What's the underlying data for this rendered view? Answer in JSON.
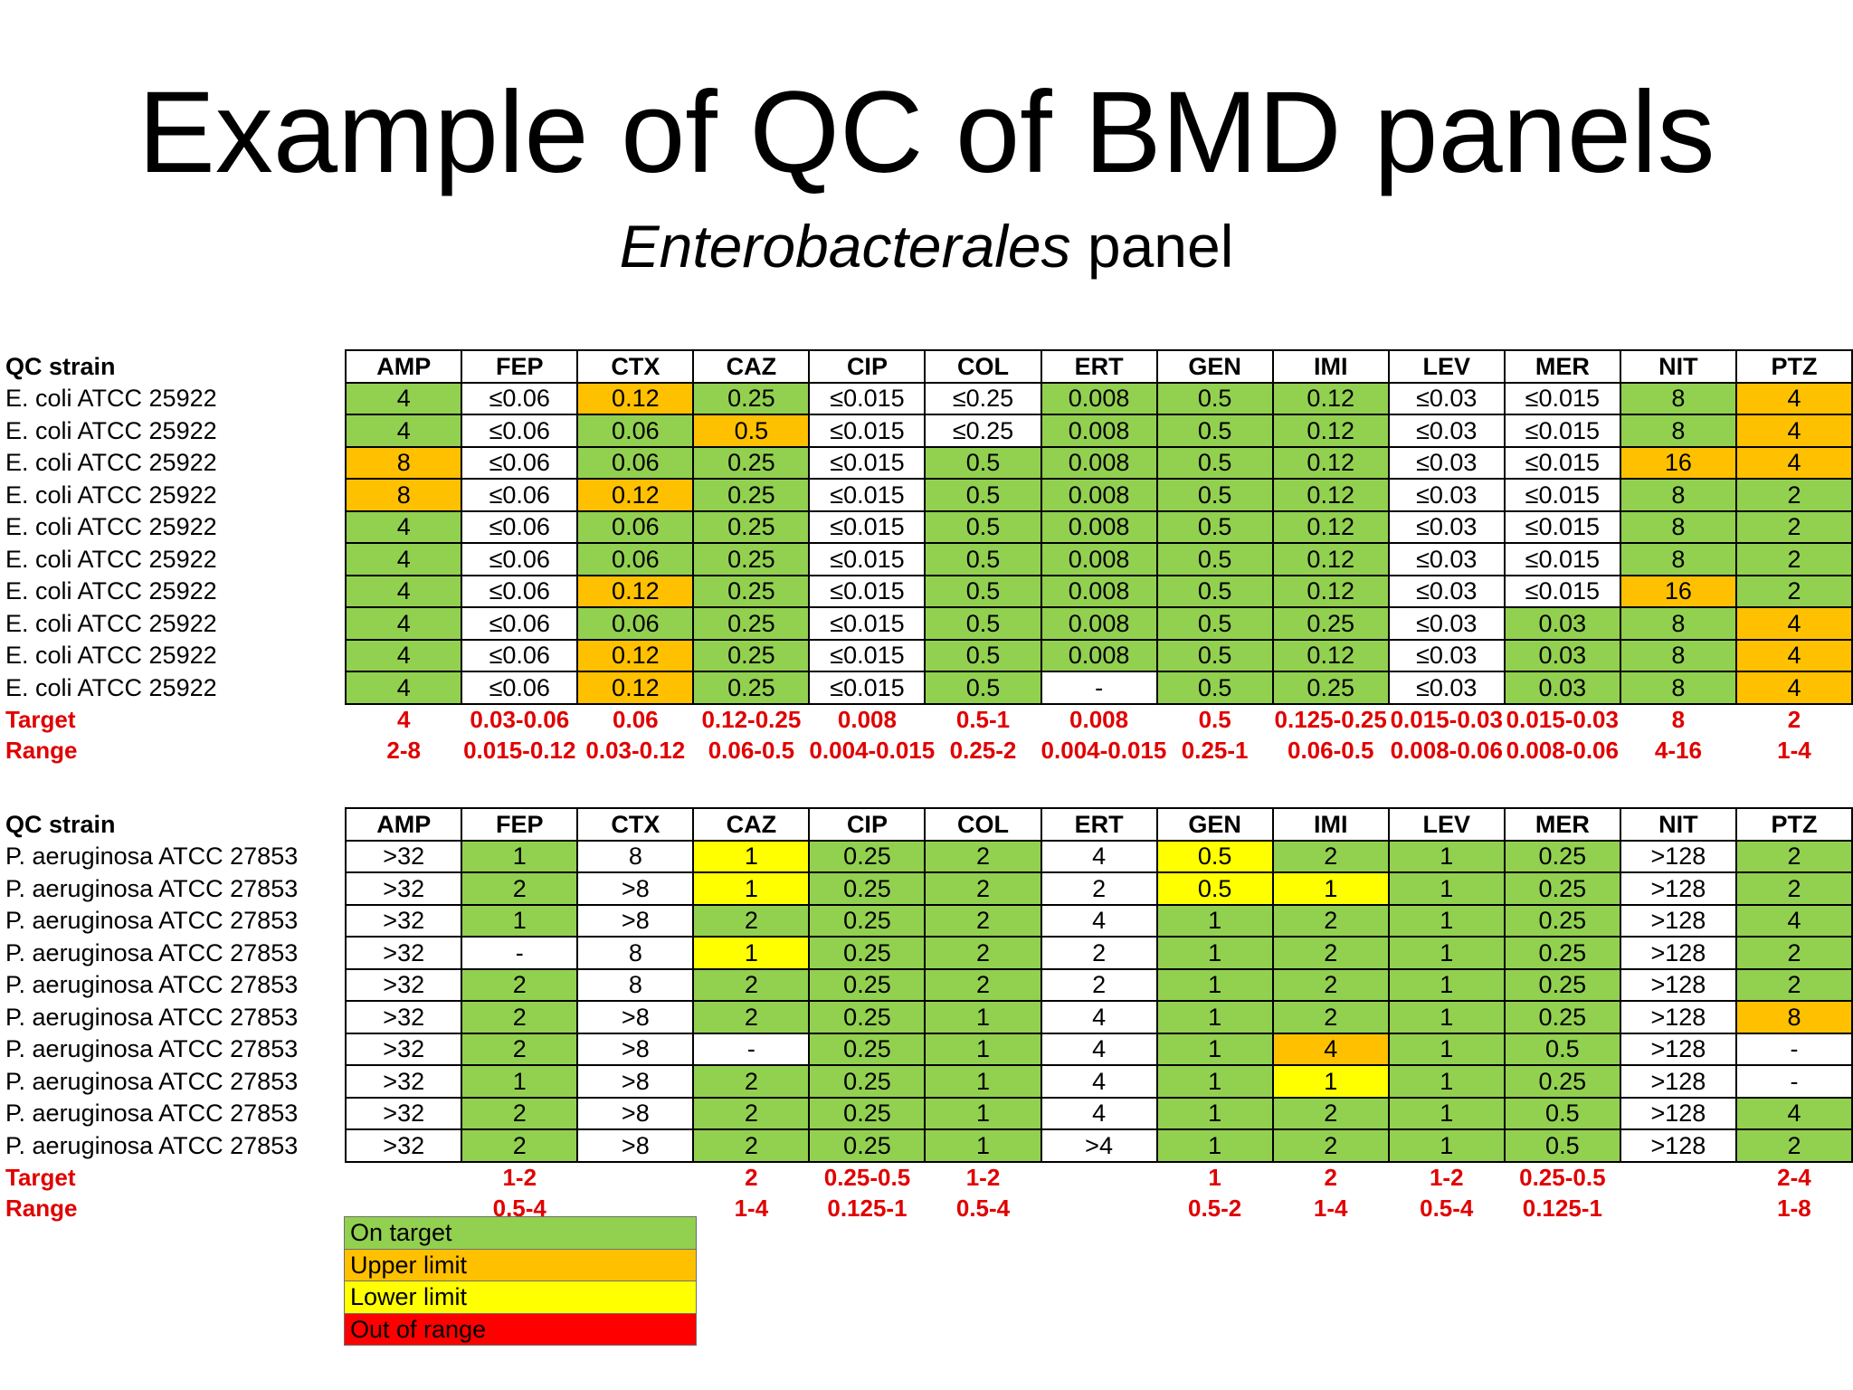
{
  "title": "Example of QC of BMD panels",
  "subtitle_italic": "Enterobacterales",
  "subtitle_rest": " panel",
  "columns": [
    "AMP",
    "FEP",
    "CTX",
    "CAZ",
    "CIP",
    "COL",
    "ERT",
    "GEN",
    "IMI",
    "LEV",
    "MER",
    "NIT",
    "PTZ"
  ],
  "colors": {
    "g": "#92d050",
    "o": "#ffc000",
    "y": "#ffff00",
    "r": "#ff0000",
    "w": "#ffffff"
  },
  "table1": {
    "header_label": "QC strain",
    "rows": [
      {
        "strain": "E. coli ATCC 25922",
        "values": [
          "4",
          "≤0.06",
          "0.12",
          "0.25",
          "≤0.015",
          "≤0.25",
          "0.008",
          "0.5",
          "0.12",
          "≤0.03",
          "≤0.015",
          "8",
          "4"
        ],
        "colors": [
          "g",
          "w",
          "o",
          "g",
          "w",
          "w",
          "g",
          "g",
          "g",
          "w",
          "w",
          "g",
          "o"
        ]
      },
      {
        "strain": "E. coli ATCC 25922",
        "values": [
          "4",
          "≤0.06",
          "0.06",
          "0.5",
          "≤0.015",
          "≤0.25",
          "0.008",
          "0.5",
          "0.12",
          "≤0.03",
          "≤0.015",
          "8",
          "4"
        ],
        "colors": [
          "g",
          "w",
          "g",
          "o",
          "w",
          "w",
          "g",
          "g",
          "g",
          "w",
          "w",
          "g",
          "o"
        ]
      },
      {
        "strain": "E. coli ATCC 25922",
        "values": [
          "8",
          "≤0.06",
          "0.06",
          "0.25",
          "≤0.015",
          "0.5",
          "0.008",
          "0.5",
          "0.12",
          "≤0.03",
          "≤0.015",
          "16",
          "4"
        ],
        "colors": [
          "o",
          "w",
          "g",
          "g",
          "w",
          "g",
          "g",
          "g",
          "g",
          "w",
          "w",
          "o",
          "o"
        ]
      },
      {
        "strain": "E. coli ATCC 25922",
        "values": [
          "8",
          "≤0.06",
          "0.12",
          "0.25",
          "≤0.015",
          "0.5",
          "0.008",
          "0.5",
          "0.12",
          "≤0.03",
          "≤0.015",
          "8",
          "2"
        ],
        "colors": [
          "o",
          "w",
          "o",
          "g",
          "w",
          "g",
          "g",
          "g",
          "g",
          "w",
          "w",
          "g",
          "g"
        ]
      },
      {
        "strain": "E. coli ATCC 25922",
        "values": [
          "4",
          "≤0.06",
          "0.06",
          "0.25",
          "≤0.015",
          "0.5",
          "0.008",
          "0.5",
          "0.12",
          "≤0.03",
          "≤0.015",
          "8",
          "2"
        ],
        "colors": [
          "g",
          "w",
          "g",
          "g",
          "w",
          "g",
          "g",
          "g",
          "g",
          "w",
          "w",
          "g",
          "g"
        ]
      },
      {
        "strain": "E. coli ATCC 25922",
        "values": [
          "4",
          "≤0.06",
          "0.06",
          "0.25",
          "≤0.015",
          "0.5",
          "0.008",
          "0.5",
          "0.12",
          "≤0.03",
          "≤0.015",
          "8",
          "2"
        ],
        "colors": [
          "g",
          "w",
          "g",
          "g",
          "w",
          "g",
          "g",
          "g",
          "g",
          "w",
          "w",
          "g",
          "g"
        ]
      },
      {
        "strain": "E. coli ATCC 25922",
        "values": [
          "4",
          "≤0.06",
          "0.12",
          "0.25",
          "≤0.015",
          "0.5",
          "0.008",
          "0.5",
          "0.12",
          "≤0.03",
          "≤0.015",
          "16",
          "2"
        ],
        "colors": [
          "g",
          "w",
          "o",
          "g",
          "w",
          "g",
          "g",
          "g",
          "g",
          "w",
          "w",
          "o",
          "g"
        ]
      },
      {
        "strain": "E. coli ATCC 25922",
        "values": [
          "4",
          "≤0.06",
          "0.06",
          "0.25",
          "≤0.015",
          "0.5",
          "0.008",
          "0.5",
          "0.25",
          "≤0.03",
          "0.03",
          "8",
          "4"
        ],
        "colors": [
          "g",
          "w",
          "g",
          "g",
          "w",
          "g",
          "g",
          "g",
          "g",
          "w",
          "g",
          "g",
          "o"
        ]
      },
      {
        "strain": "E. coli ATCC 25922",
        "values": [
          "4",
          "≤0.06",
          "0.12",
          "0.25",
          "≤0.015",
          "0.5",
          "0.008",
          "0.5",
          "0.12",
          "≤0.03",
          "0.03",
          "8",
          "4"
        ],
        "colors": [
          "g",
          "w",
          "o",
          "g",
          "w",
          "g",
          "g",
          "g",
          "g",
          "w",
          "g",
          "g",
          "o"
        ]
      },
      {
        "strain": "E. coli ATCC 25922",
        "values": [
          "4",
          "≤0.06",
          "0.12",
          "0.25",
          "≤0.015",
          "0.5",
          "-",
          "0.5",
          "0.25",
          "≤0.03",
          "0.03",
          "8",
          "4"
        ],
        "colors": [
          "g",
          "w",
          "o",
          "g",
          "w",
          "g",
          "w",
          "g",
          "g",
          "w",
          "g",
          "g",
          "o"
        ]
      }
    ],
    "target_label": "Target",
    "target": [
      "4",
      "0.03-0.06",
      "0.06",
      "0.12-0.25",
      "0.008",
      "0.5-1",
      "0.008",
      "0.5",
      "0.125-0.25",
      "0.015-0.03",
      "0.015-0.03",
      "8",
      "2"
    ],
    "range_label": "Range",
    "range": [
      "2-8",
      "0.015-0.12",
      "0.03-0.12",
      "0.06-0.5",
      "0.004-0.015",
      "0.25-2",
      "0.004-0.015",
      "0.25-1",
      "0.06-0.5",
      "0.008-0.06",
      "0.008-0.06",
      "4-16",
      "1-4"
    ]
  },
  "table2": {
    "header_label": "QC strain",
    "rows": [
      {
        "strain": "P. aeruginosa ATCC 27853",
        "values": [
          ">32",
          "1",
          "8",
          "1",
          "0.25",
          "2",
          "4",
          "0.5",
          "2",
          "1",
          "0.25",
          ">128",
          "2"
        ],
        "colors": [
          "w",
          "g",
          "w",
          "y",
          "g",
          "g",
          "w",
          "y",
          "g",
          "g",
          "g",
          "w",
          "g"
        ]
      },
      {
        "strain": "P. aeruginosa ATCC 27853",
        "values": [
          ">32",
          "2",
          ">8",
          "1",
          "0.25",
          "2",
          "2",
          "0.5",
          "1",
          "1",
          "0.25",
          ">128",
          "2"
        ],
        "colors": [
          "w",
          "g",
          "w",
          "y",
          "g",
          "g",
          "w",
          "y",
          "y",
          "g",
          "g",
          "w",
          "g"
        ]
      },
      {
        "strain": "P. aeruginosa ATCC 27853",
        "values": [
          ">32",
          "1",
          ">8",
          "2",
          "0.25",
          "2",
          "4",
          "1",
          "2",
          "1",
          "0.25",
          ">128",
          "4"
        ],
        "colors": [
          "w",
          "g",
          "w",
          "g",
          "g",
          "g",
          "w",
          "g",
          "g",
          "g",
          "g",
          "w",
          "g"
        ]
      },
      {
        "strain": "P. aeruginosa ATCC 27853",
        "values": [
          ">32",
          "-",
          "8",
          "1",
          "0.25",
          "2",
          "2",
          "1",
          "2",
          "1",
          "0.25",
          ">128",
          "2"
        ],
        "colors": [
          "w",
          "w",
          "w",
          "y",
          "g",
          "g",
          "w",
          "g",
          "g",
          "g",
          "g",
          "w",
          "g"
        ]
      },
      {
        "strain": "P. aeruginosa ATCC 27853",
        "values": [
          ">32",
          "2",
          "8",
          "2",
          "0.25",
          "2",
          "2",
          "1",
          "2",
          "1",
          "0.25",
          ">128",
          "2"
        ],
        "colors": [
          "w",
          "g",
          "w",
          "g",
          "g",
          "g",
          "w",
          "g",
          "g",
          "g",
          "g",
          "w",
          "g"
        ]
      },
      {
        "strain": "P. aeruginosa ATCC 27853",
        "values": [
          ">32",
          "2",
          ">8",
          "2",
          "0.25",
          "1",
          "4",
          "1",
          "2",
          "1",
          "0.25",
          ">128",
          "8"
        ],
        "colors": [
          "w",
          "g",
          "w",
          "g",
          "g",
          "g",
          "w",
          "g",
          "g",
          "g",
          "g",
          "w",
          "o"
        ]
      },
      {
        "strain": "P. aeruginosa ATCC 27853",
        "values": [
          ">32",
          "2",
          ">8",
          "-",
          "0.25",
          "1",
          "4",
          "1",
          "4",
          "1",
          "0.5",
          ">128",
          "-"
        ],
        "colors": [
          "w",
          "g",
          "w",
          "w",
          "g",
          "g",
          "w",
          "g",
          "o",
          "g",
          "g",
          "w",
          "w"
        ]
      },
      {
        "strain": "P. aeruginosa ATCC 27853",
        "values": [
          ">32",
          "1",
          ">8",
          "2",
          "0.25",
          "1",
          "4",
          "1",
          "1",
          "1",
          "0.25",
          ">128",
          "-"
        ],
        "colors": [
          "w",
          "g",
          "w",
          "g",
          "g",
          "g",
          "w",
          "g",
          "y",
          "g",
          "g",
          "w",
          "w"
        ]
      },
      {
        "strain": "P. aeruginosa ATCC 27853",
        "values": [
          ">32",
          "2",
          ">8",
          "2",
          "0.25",
          "1",
          "4",
          "1",
          "2",
          "1",
          "0.5",
          ">128",
          "4"
        ],
        "colors": [
          "w",
          "g",
          "w",
          "g",
          "g",
          "g",
          "w",
          "g",
          "g",
          "g",
          "g",
          "w",
          "g"
        ]
      },
      {
        "strain": "P. aeruginosa ATCC 27853",
        "values": [
          ">32",
          "2",
          ">8",
          "2",
          "0.25",
          "1",
          ">4",
          "1",
          "2",
          "1",
          "0.5",
          ">128",
          "2"
        ],
        "colors": [
          "w",
          "g",
          "w",
          "g",
          "g",
          "g",
          "w",
          "g",
          "g",
          "g",
          "g",
          "w",
          "g"
        ]
      }
    ],
    "target_label": "Target",
    "target": [
      "",
      "1-2",
      "",
      "2",
      "0.25-0.5",
      "1-2",
      "",
      "1",
      "2",
      "1-2",
      "0.25-0.5",
      "",
      "2-4"
    ],
    "range_label": "Range",
    "range": [
      "",
      "0.5-4",
      "",
      "1-4",
      "0.125-1",
      "0.5-4",
      "",
      "0.5-2",
      "1-4",
      "0.5-4",
      "0.125-1",
      "",
      "1-8"
    ]
  },
  "legend": [
    {
      "label": "On target",
      "color": "g"
    },
    {
      "label": "Upper limit",
      "color": "o"
    },
    {
      "label": "Lower limit",
      "color": "y"
    },
    {
      "label": "Out of range",
      "color": "r"
    }
  ]
}
